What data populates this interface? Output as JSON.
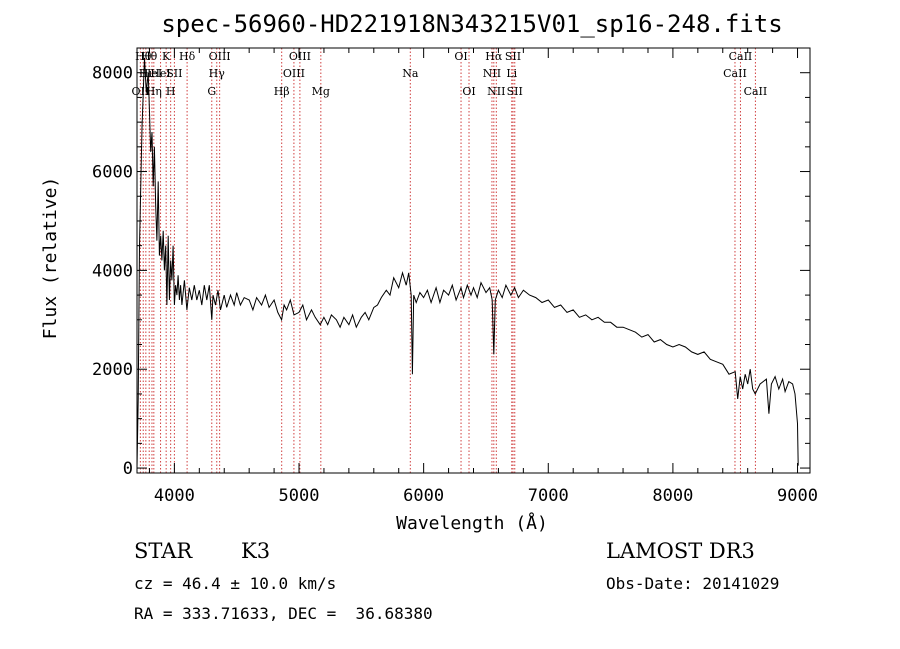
{
  "chart_data": {
    "type": "line",
    "title": "spec-56960-HD221918N343215V01_sp16-248.fits",
    "xlabel": "Wavelength (Å)",
    "ylabel": "Flux (relative)",
    "xlim": [
      3700,
      9100
    ],
    "ylim": [
      -100,
      8500
    ],
    "x_ticks": [
      4000,
      5000,
      6000,
      7000,
      8000,
      9000
    ],
    "y_ticks": [
      0,
      2000,
      4000,
      6000,
      8000
    ],
    "grid": false,
    "series": [
      {
        "points": [
          [
            3700,
            0
          ],
          [
            3710,
            1400
          ],
          [
            3720,
            4500
          ],
          [
            3740,
            6900
          ],
          [
            3760,
            8300
          ],
          [
            3775,
            7600
          ],
          [
            3790,
            8000
          ],
          [
            3800,
            7200
          ],
          [
            3810,
            6400
          ],
          [
            3820,
            6800
          ],
          [
            3830,
            5700
          ],
          [
            3840,
            6500
          ],
          [
            3850,
            5300
          ],
          [
            3860,
            4600
          ],
          [
            3870,
            5800
          ],
          [
            3880,
            4300
          ],
          [
            3890,
            4700
          ],
          [
            3900,
            4200
          ],
          [
            3910,
            4800
          ],
          [
            3920,
            4000
          ],
          [
            3930,
            4500
          ],
          [
            3940,
            3300
          ],
          [
            3950,
            4700
          ],
          [
            3960,
            3400
          ],
          [
            3970,
            4200
          ],
          [
            3980,
            3800
          ],
          [
            3990,
            4500
          ],
          [
            4000,
            3300
          ],
          [
            4010,
            3700
          ],
          [
            4020,
            3500
          ],
          [
            4030,
            3900
          ],
          [
            4040,
            3400
          ],
          [
            4050,
            3700
          ],
          [
            4060,
            3300
          ],
          [
            4080,
            3800
          ],
          [
            4100,
            3200
          ],
          [
            4120,
            3650
          ],
          [
            4140,
            3400
          ],
          [
            4160,
            3700
          ],
          [
            4180,
            3400
          ],
          [
            4200,
            3600
          ],
          [
            4220,
            3300
          ],
          [
            4240,
            3700
          ],
          [
            4260,
            3400
          ],
          [
            4280,
            3700
          ],
          [
            4300,
            3000
          ],
          [
            4310,
            3500
          ],
          [
            4330,
            3300
          ],
          [
            4350,
            3600
          ],
          [
            4370,
            3200
          ],
          [
            4400,
            3500
          ],
          [
            4420,
            3250
          ],
          [
            4450,
            3500
          ],
          [
            4480,
            3300
          ],
          [
            4500,
            3550
          ],
          [
            4530,
            3300
          ],
          [
            4560,
            3450
          ],
          [
            4600,
            3400
          ],
          [
            4630,
            3200
          ],
          [
            4660,
            3450
          ],
          [
            4700,
            3300
          ],
          [
            4730,
            3500
          ],
          [
            4760,
            3250
          ],
          [
            4800,
            3400
          ],
          [
            4830,
            3150
          ],
          [
            4860,
            3000
          ],
          [
            4880,
            3300
          ],
          [
            4900,
            3200
          ],
          [
            4930,
            3400
          ],
          [
            4960,
            3100
          ],
          [
            5000,
            3150
          ],
          [
            5030,
            3300
          ],
          [
            5060,
            3000
          ],
          [
            5100,
            3200
          ],
          [
            5130,
            3050
          ],
          [
            5170,
            2900
          ],
          [
            5200,
            3050
          ],
          [
            5230,
            2900
          ],
          [
            5260,
            3100
          ],
          [
            5300,
            3000
          ],
          [
            5330,
            2850
          ],
          [
            5360,
            3050
          ],
          [
            5400,
            2900
          ],
          [
            5430,
            3100
          ],
          [
            5460,
            2850
          ],
          [
            5500,
            3050
          ],
          [
            5530,
            3150
          ],
          [
            5560,
            3000
          ],
          [
            5600,
            3250
          ],
          [
            5630,
            3300
          ],
          [
            5660,
            3450
          ],
          [
            5700,
            3600
          ],
          [
            5730,
            3500
          ],
          [
            5760,
            3850
          ],
          [
            5800,
            3650
          ],
          [
            5830,
            3950
          ],
          [
            5860,
            3700
          ],
          [
            5880,
            3950
          ],
          [
            5900,
            3500
          ],
          [
            5910,
            1900
          ],
          [
            5920,
            3500
          ],
          [
            5940,
            3350
          ],
          [
            5970,
            3550
          ],
          [
            6000,
            3450
          ],
          [
            6030,
            3600
          ],
          [
            6060,
            3350
          ],
          [
            6100,
            3650
          ],
          [
            6130,
            3350
          ],
          [
            6160,
            3600
          ],
          [
            6200,
            3500
          ],
          [
            6230,
            3700
          ],
          [
            6260,
            3400
          ],
          [
            6300,
            3650
          ],
          [
            6320,
            3450
          ],
          [
            6350,
            3700
          ],
          [
            6380,
            3500
          ],
          [
            6400,
            3650
          ],
          [
            6430,
            3450
          ],
          [
            6460,
            3750
          ],
          [
            6500,
            3550
          ],
          [
            6530,
            3650
          ],
          [
            6550,
            3400
          ],
          [
            6563,
            2300
          ],
          [
            6575,
            3400
          ],
          [
            6600,
            3600
          ],
          [
            6630,
            3450
          ],
          [
            6660,
            3700
          ],
          [
            6700,
            3500
          ],
          [
            6730,
            3650
          ],
          [
            6760,
            3450
          ],
          [
            6800,
            3600
          ],
          [
            6850,
            3500
          ],
          [
            6900,
            3450
          ],
          [
            6950,
            3350
          ],
          [
            7000,
            3400
          ],
          [
            7050,
            3250
          ],
          [
            7100,
            3300
          ],
          [
            7150,
            3150
          ],
          [
            7200,
            3200
          ],
          [
            7250,
            3050
          ],
          [
            7300,
            3100
          ],
          [
            7350,
            3000
          ],
          [
            7400,
            3050
          ],
          [
            7450,
            2950
          ],
          [
            7500,
            2950
          ],
          [
            7550,
            2850
          ],
          [
            7600,
            2850
          ],
          [
            7650,
            2800
          ],
          [
            7700,
            2750
          ],
          [
            7750,
            2650
          ],
          [
            7800,
            2700
          ],
          [
            7850,
            2550
          ],
          [
            7900,
            2600
          ],
          [
            7950,
            2500
          ],
          [
            8000,
            2450
          ],
          [
            8050,
            2500
          ],
          [
            8100,
            2450
          ],
          [
            8150,
            2350
          ],
          [
            8200,
            2300
          ],
          [
            8250,
            2350
          ],
          [
            8300,
            2200
          ],
          [
            8350,
            2150
          ],
          [
            8400,
            2100
          ],
          [
            8450,
            1900
          ],
          [
            8500,
            1950
          ],
          [
            8520,
            1400
          ],
          [
            8540,
            1850
          ],
          [
            8560,
            1600
          ],
          [
            8580,
            1900
          ],
          [
            8600,
            1700
          ],
          [
            8620,
            2000
          ],
          [
            8640,
            1600
          ],
          [
            8660,
            1500
          ],
          [
            8700,
            1700
          ],
          [
            8750,
            1800
          ],
          [
            8770,
            1100
          ],
          [
            8790,
            1700
          ],
          [
            8820,
            1850
          ],
          [
            8850,
            1600
          ],
          [
            8880,
            1800
          ],
          [
            8900,
            1550
          ],
          [
            8930,
            1750
          ],
          [
            8960,
            1700
          ],
          [
            8980,
            1500
          ],
          [
            9000,
            900
          ],
          [
            9005,
            50
          ]
        ]
      }
    ],
    "line_markers": [
      {
        "wavelength": 3727,
        "row": 3,
        "label": "OII"
      },
      {
        "wavelength": 3750,
        "row": 1,
        "label": "Hθ"
      },
      {
        "wavelength": 3771,
        "row": 2,
        "label": "Hι"
      },
      {
        "wavelength": 3798,
        "row": 1,
        "label": "Hθ"
      },
      {
        "wavelength": 3820,
        "row": 2,
        "label": "HeI"
      },
      {
        "wavelength": 3835,
        "row": 3,
        "label": "Hη"
      },
      {
        "wavelength": 3889,
        "row": 2,
        "label": "HeI"
      },
      {
        "wavelength": 3934,
        "row": 1,
        "label": "K"
      },
      {
        "wavelength": 3970,
        "row": 3,
        "label": "H"
      },
      {
        "wavelength": 4000,
        "row": 2,
        "label": "SII"
      },
      {
        "wavelength": 4102,
        "row": 1,
        "label": "Hδ"
      },
      {
        "wavelength": 4300,
        "row": 3,
        "label": "G"
      },
      {
        "wavelength": 4340,
        "row": 2,
        "label": "Hγ"
      },
      {
        "wavelength": 4363,
        "row": 1,
        "label": "OIII"
      },
      {
        "wavelength": 4861,
        "row": 3,
        "label": "Hβ"
      },
      {
        "wavelength": 4959,
        "row": 2,
        "label": "OIII"
      },
      {
        "wavelength": 5007,
        "row": 1,
        "label": "OIII"
      },
      {
        "wavelength": 5175,
        "row": 3,
        "label": "Mg"
      },
      {
        "wavelength": 5893,
        "row": 2,
        "label": "Na"
      },
      {
        "wavelength": 6300,
        "row": 1,
        "label": "OI"
      },
      {
        "wavelength": 6364,
        "row": 3,
        "label": "OI"
      },
      {
        "wavelength": 6548,
        "row": 2,
        "label": "NII"
      },
      {
        "wavelength": 6563,
        "row": 1,
        "label": "Hα"
      },
      {
        "wavelength": 6583,
        "row": 3,
        "label": "NII"
      },
      {
        "wavelength": 6707,
        "row": 2,
        "label": "Li"
      },
      {
        "wavelength": 6717,
        "row": 1,
        "label": "SII"
      },
      {
        "wavelength": 6731,
        "row": 3,
        "label": "SII"
      },
      {
        "wavelength": 8498,
        "row": 2,
        "label": "CaII"
      },
      {
        "wavelength": 8542,
        "row": 1,
        "label": "CaII"
      },
      {
        "wavelength": 8662,
        "row": 3,
        "label": "CaII"
      }
    ],
    "marker_color": "#d04040"
  },
  "info": {
    "object_class": "STAR",
    "subclass": "K3",
    "survey": "LAMOST DR3",
    "redshift": "cz = 46.4 ± 10.0 km/s",
    "obs_date": "Obs-Date: 20141029",
    "coords": "RA = 333.71633, DEC =  36.68380"
  }
}
